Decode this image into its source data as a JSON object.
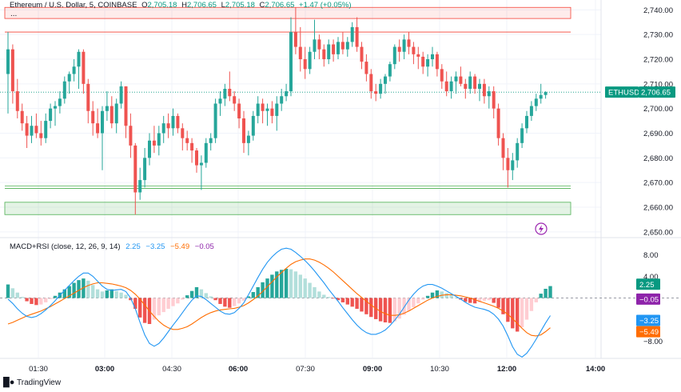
{
  "header": {
    "symbol_label": "Ethereum / U.S. Dollar, 5, COINBASE",
    "o_key": "O",
    "o_val": "2,705.18",
    "h_key": "H",
    "h_val": "2,706.65",
    "l_key": "L",
    "l_val": "2,705.18",
    "c_key": "C",
    "c_val": "2,706.65",
    "change": "+1.47 (+0.05%)",
    "more": "..."
  },
  "indicator": {
    "label": "MACD+RSI (close, 12, 26, 9, 14)",
    "v1": "2.25",
    "v2": "−3.25",
    "v3": "−5.49",
    "v4": "−0.05"
  },
  "brand": "TradingView",
  "colors": {
    "up": "#26a69a",
    "down": "#ef5350",
    "up_light": "#b2dfdb",
    "down_light": "#ffcdd2",
    "macd": "#2196f3",
    "signal": "#ff6d00",
    "tag_green": "#089981",
    "tag_purple": "#8e24aa",
    "tag_blue": "#2196f3",
    "tag_orange": "#ff6d00",
    "zone_red": "#f44336",
    "zone_green": "#4caf50"
  },
  "chart_data": [
    {
      "type": "candlestick",
      "symbol": "ETHUSD",
      "last_price": "2,706.65",
      "price_axis_ticks": [
        "2,740.00",
        "2,730.00",
        "2,720.00",
        "2,710.00",
        "2,700.00",
        "2,690.00",
        "2,680.00",
        "2,670.00",
        "2,660.00",
        "2,650.00"
      ],
      "ylim": [
        2648,
        2744
      ],
      "time_ticks": [
        {
          "label": "01:30",
          "bold": false
        },
        {
          "label": "03:00",
          "bold": true
        },
        {
          "label": "04:30",
          "bold": false
        },
        {
          "label": "06:00",
          "bold": true
        },
        {
          "label": "07:30",
          "bold": false
        },
        {
          "label": "09:00",
          "bold": true
        },
        {
          "label": "10:30",
          "bold": false
        },
        {
          "label": "12:00",
          "bold": true
        },
        {
          "label": "14:00",
          "bold": true
        }
      ],
      "zones": [
        {
          "kind": "resistance",
          "from": 2736.5,
          "to": 2741.0
        },
        {
          "kind": "resistance_line",
          "at": 2731.0
        },
        {
          "kind": "support_line",
          "at": 2668.6
        },
        {
          "kind": "support_line",
          "at": 2667.6
        },
        {
          "kind": "support",
          "from": 2657.0,
          "to": 2662.0
        }
      ],
      "candles": [
        [
          2714.0,
          2731.0,
          2698.0,
          2724.0
        ],
        [
          2724.0,
          2726.0,
          2702.0,
          2707.0
        ],
        [
          2707.0,
          2712.0,
          2696.0,
          2699.0
        ],
        [
          2699.0,
          2702.0,
          2691.0,
          2694.0
        ],
        [
          2694.0,
          2697.0,
          2684.0,
          2689.0
        ],
        [
          2689.0,
          2697.0,
          2686.0,
          2693.0
        ],
        [
          2693.0,
          2698.0,
          2688.0,
          2690.0
        ],
        [
          2690.0,
          2695.0,
          2685.0,
          2688.0
        ],
        [
          2688.0,
          2698.0,
          2686.0,
          2695.0
        ],
        [
          2695.0,
          2702.0,
          2692.0,
          2700.0
        ],
        [
          2700.0,
          2703.0,
          2693.0,
          2701.0
        ],
        [
          2701.0,
          2707.0,
          2698.0,
          2704.0
        ],
        [
          2704.0,
          2713.0,
          2702.0,
          2711.0
        ],
        [
          2711.0,
          2715.0,
          2706.0,
          2714.0
        ],
        [
          2714.0,
          2720.0,
          2711.0,
          2717.0
        ],
        [
          2717.0,
          2724.0,
          2708.0,
          2723.0
        ],
        [
          2723.0,
          2724.0,
          2706.0,
          2710.0
        ],
        [
          2710.0,
          2712.0,
          2694.0,
          2699.0
        ],
        [
          2699.0,
          2703.0,
          2689.0,
          2694.0
        ],
        [
          2694.0,
          2700.0,
          2688.0,
          2690.0
        ],
        [
          2690.0,
          2701.0,
          2675.0,
          2699.0
        ],
        [
          2699.0,
          2707.0,
          2695.0,
          2701.0
        ],
        [
          2701.0,
          2705.0,
          2692.0,
          2694.0
        ],
        [
          2694.0,
          2704.0,
          2690.0,
          2702.0
        ],
        [
          2702.0,
          2711.0,
          2700.0,
          2709.0
        ],
        [
          2709.0,
          2709.0,
          2688.0,
          2693.0
        ],
        [
          2693.0,
          2698.0,
          2680.0,
          2685.0
        ],
        [
          2685.0,
          2686.0,
          2657.0,
          2666.0
        ],
        [
          2666.0,
          2676.0,
          2663.0,
          2671.0
        ],
        [
          2671.0,
          2684.0,
          2668.0,
          2680.0
        ],
        [
          2680.0,
          2690.0,
          2677.0,
          2687.0
        ],
        [
          2687.0,
          2693.0,
          2682.0,
          2685.0
        ],
        [
          2685.0,
          2693.0,
          2681.0,
          2690.0
        ],
        [
          2690.0,
          2697.0,
          2686.0,
          2694.0
        ],
        [
          2694.0,
          2698.0,
          2688.0,
          2692.0
        ],
        [
          2692.0,
          2700.0,
          2689.0,
          2697.0
        ],
        [
          2697.0,
          2698.0,
          2690.0,
          2692.0
        ],
        [
          2692.0,
          2694.0,
          2683.0,
          2688.0
        ],
        [
          2688.0,
          2691.0,
          2683.0,
          2686.0
        ],
        [
          2686.0,
          2688.0,
          2678.0,
          2683.0
        ],
        [
          2683.0,
          2684.0,
          2674.0,
          2677.0
        ],
        [
          2677.0,
          2681.0,
          2667.0,
          2678.0
        ],
        [
          2678.0,
          2688.0,
          2676.0,
          2686.0
        ],
        [
          2686.0,
          2690.0,
          2683.0,
          2688.0
        ],
        [
          2688.0,
          2704.0,
          2686.0,
          2702.0
        ],
        [
          2702.0,
          2707.0,
          2697.0,
          2704.0
        ],
        [
          2704.0,
          2710.0,
          2701.0,
          2708.0
        ],
        [
          2708.0,
          2715.0,
          2703.0,
          2705.0
        ],
        [
          2705.0,
          2707.0,
          2699.0,
          2702.0
        ],
        [
          2702.0,
          2704.0,
          2692.0,
          2696.0
        ],
        [
          2696.0,
          2699.0,
          2682.0,
          2686.0
        ],
        [
          2686.0,
          2691.0,
          2681.0,
          2689.0
        ],
        [
          2689.0,
          2699.0,
          2687.0,
          2697.0
        ],
        [
          2697.0,
          2705.0,
          2694.0,
          2702.0
        ],
        [
          2702.0,
          2704.0,
          2694.0,
          2699.0
        ],
        [
          2699.0,
          2702.0,
          2693.0,
          2700.0
        ],
        [
          2700.0,
          2703.0,
          2694.0,
          2697.0
        ],
        [
          2697.0,
          2705.0,
          2691.0,
          2702.0
        ],
        [
          2702.0,
          2708.0,
          2699.0,
          2705.0
        ],
        [
          2705.0,
          2710.0,
          2703.0,
          2707.0
        ],
        [
          2707.0,
          2737.0,
          2705.0,
          2731.0
        ],
        [
          2731.0,
          2741.0,
          2722.0,
          2725.0
        ],
        [
          2725.0,
          2733.0,
          2715.0,
          2720.0
        ],
        [
          2720.0,
          2725.0,
          2712.0,
          2716.0
        ],
        [
          2716.0,
          2725.0,
          2714.0,
          2723.0
        ],
        [
          2723.0,
          2736.0,
          2720.0,
          2728.0
        ],
        [
          2728.0,
          2730.0,
          2720.0,
          2724.0
        ],
        [
          2724.0,
          2726.0,
          2717.0,
          2720.0
        ],
        [
          2720.0,
          2728.0,
          2718.0,
          2726.0
        ],
        [
          2726.0,
          2728.0,
          2719.0,
          2722.0
        ],
        [
          2722.0,
          2729.0,
          2720.0,
          2727.0
        ],
        [
          2727.0,
          2731.0,
          2722.0,
          2724.0
        ],
        [
          2724.0,
          2729.0,
          2721.0,
          2727.0
        ],
        [
          2727.0,
          2735.0,
          2725.0,
          2733.0
        ],
        [
          2733.0,
          2737.0,
          2723.0,
          2725.0
        ],
        [
          2725.0,
          2727.0,
          2716.0,
          2719.0
        ],
        [
          2719.0,
          2722.0,
          2711.0,
          2714.0
        ],
        [
          2714.0,
          2716.0,
          2704.0,
          2707.0
        ],
        [
          2707.0,
          2710.0,
          2703.0,
          2706.0
        ],
        [
          2706.0,
          2712.0,
          2704.0,
          2710.0
        ],
        [
          2710.0,
          2714.0,
          2706.0,
          2713.0
        ],
        [
          2713.0,
          2719.0,
          2711.0,
          2718.0
        ],
        [
          2718.0,
          2726.0,
          2716.0,
          2725.0
        ],
        [
          2725.0,
          2728.0,
          2719.0,
          2723.0
        ],
        [
          2723.0,
          2730.0,
          2720.0,
          2728.0
        ],
        [
          2728.0,
          2731.0,
          2722.0,
          2725.0
        ],
        [
          2725.0,
          2727.0,
          2718.0,
          2722.0
        ],
        [
          2722.0,
          2725.0,
          2716.0,
          2721.0
        ],
        [
          2721.0,
          2723.0,
          2714.0,
          2717.0
        ],
        [
          2717.0,
          2722.0,
          2713.0,
          2720.0
        ],
        [
          2720.0,
          2725.0,
          2717.0,
          2722.0
        ],
        [
          2722.0,
          2723.0,
          2713.0,
          2716.0
        ],
        [
          2716.0,
          2718.0,
          2708.0,
          2711.0
        ],
        [
          2711.0,
          2715.0,
          2705.0,
          2707.0
        ],
        [
          2707.0,
          2713.0,
          2704.0,
          2711.0
        ],
        [
          2711.0,
          2715.0,
          2706.0,
          2713.0
        ],
        [
          2713.0,
          2717.0,
          2709.0,
          2710.0
        ],
        [
          2710.0,
          2712.0,
          2704.0,
          2708.0
        ],
        [
          2708.0,
          2715.0,
          2706.0,
          2713.0
        ],
        [
          2713.0,
          2714.0,
          2706.0,
          2708.0
        ],
        [
          2708.0,
          2712.0,
          2703.0,
          2710.0
        ],
        [
          2710.0,
          2712.0,
          2702.0,
          2705.0
        ],
        [
          2705.0,
          2709.0,
          2700.0,
          2707.0
        ],
        [
          2707.0,
          2709.0,
          2696.0,
          2700.0
        ],
        [
          2700.0,
          2702.0,
          2685.0,
          2688.0
        ],
        [
          2688.0,
          2690.0,
          2675.0,
          2680.0
        ],
        [
          2680.0,
          2684.0,
          2668.0,
          2675.0
        ],
        [
          2675.0,
          2682.0,
          2671.0,
          2679.0
        ],
        [
          2679.0,
          2688.0,
          2676.0,
          2686.0
        ],
        [
          2686.0,
          2694.0,
          2684.0,
          2692.0
        ],
        [
          2692.0,
          2699.0,
          2690.0,
          2697.0
        ],
        [
          2697.0,
          2703.0,
          2695.0,
          2701.0
        ],
        [
          2701.0,
          2706.0,
          2699.0,
          2704.0
        ],
        [
          2704.0,
          2710.0,
          2702.0,
          2705.5
        ],
        [
          2705.5,
          2707.0,
          2704.0,
          2706.65
        ]
      ]
    },
    {
      "type": "macd",
      "label": "MACD+RSI (close, 12, 26, 9, 14)",
      "axis_ticks": [
        "8.00",
        "4.00",
        "−8.00"
      ],
      "ylim": [
        -11,
        11
      ],
      "tags": {
        "macd": "2.25",
        "hist": "−0.05",
        "rsi": "−3.25",
        "signal": "−5.49"
      },
      "histogram": [
        2.5,
        1.8,
        1.0,
        0.2,
        -0.6,
        -1.1,
        -1.3,
        -1.2,
        -0.8,
        -0.2,
        0.4,
        1.0,
        1.6,
        2.2,
        2.8,
        3.3,
        3.6,
        3.2,
        2.4,
        1.6,
        1.2,
        1.4,
        1.6,
        1.3,
        1.0,
        0.6,
        -0.4,
        -2.0,
        -3.6,
        -4.6,
        -4.8,
        -4.0,
        -3.2,
        -2.6,
        -2.0,
        -1.5,
        -1.0,
        -0.3,
        0.5,
        1.3,
        2.0,
        1.6,
        0.9,
        0.3,
        -0.4,
        -1.1,
        -1.6,
        -1.8,
        -1.5,
        -1.0,
        -0.5,
        0.3,
        1.1,
        2.0,
        2.9,
        3.6,
        4.3,
        4.9,
        5.2,
        5.4,
        5.3,
        4.9,
        4.3,
        3.6,
        2.8,
        2.0,
        1.2,
        0.6,
        0.2,
        -0.1,
        -0.4,
        -0.8,
        -1.2,
        -1.6,
        -2.0,
        -2.5,
        -3.0,
        -3.5,
        -3.9,
        -4.3,
        -4.5,
        -4.6,
        -4.3,
        -3.8,
        -3.1,
        -2.4,
        -1.7,
        -1.0,
        -0.3,
        0.4,
        1.0,
        1.4,
        1.2,
        0.9,
        0.5,
        0.1,
        -0.3,
        -0.7,
        -0.9,
        -1.0,
        -0.8,
        -0.5,
        -0.4,
        -0.9,
        -1.8,
        -3.0,
        -4.4,
        -5.6,
        -6.2,
        -5.4,
        -4.0,
        -2.4,
        -0.8,
        0.8,
        1.7,
        2.2
      ],
      "macd_line": [
        -0.2,
        -1.0,
        -2.0,
        -2.8,
        -3.4,
        -3.6,
        -3.4,
        -2.9,
        -2.2,
        -1.4,
        -0.5,
        0.5,
        1.4,
        2.3,
        3.2,
        4.0,
        4.6,
        4.6,
        4.0,
        3.1,
        2.2,
        1.6,
        1.4,
        1.5,
        1.6,
        1.2,
        0.0,
        -2.0,
        -4.5,
        -6.8,
        -8.4,
        -8.9,
        -8.4,
        -7.4,
        -6.2,
        -5.0,
        -3.9,
        -2.7,
        -1.5,
        -0.4,
        0.4,
        0.3,
        -0.3,
        -1.0,
        -1.7,
        -2.4,
        -2.9,
        -3.0,
        -2.7,
        -1.9,
        -0.9,
        0.6,
        2.2,
        3.8,
        5.3,
        6.6,
        7.6,
        8.4,
        9.0,
        9.2,
        9.0,
        8.4,
        7.7,
        6.9,
        6.0,
        5.0,
        3.9,
        2.8,
        1.6,
        0.5,
        -0.6,
        -1.8,
        -2.9,
        -4.0,
        -5.0,
        -5.8,
        -6.4,
        -6.7,
        -6.7,
        -6.4,
        -5.9,
        -5.1,
        -4.1,
        -3.0,
        -1.7,
        -0.4,
        0.7,
        1.6,
        2.2,
        2.5,
        2.5,
        2.2,
        1.8,
        1.3,
        0.8,
        0.3,
        -0.2,
        -0.8,
        -1.3,
        -1.7,
        -1.9,
        -2.1,
        -2.4,
        -3.0,
        -3.9,
        -5.2,
        -7.0,
        -9.0,
        -10.4,
        -10.9,
        -10.2,
        -9.0,
        -7.6,
        -6.1,
        -4.6,
        -3.25
      ],
      "signal_line": [
        -4.8,
        -4.5,
        -4.1,
        -3.7,
        -3.3,
        -3.0,
        -2.7,
        -2.4,
        -2.0,
        -1.6,
        -1.1,
        -0.6,
        -0.1,
        0.4,
        0.9,
        1.4,
        1.9,
        2.3,
        2.6,
        2.8,
        2.8,
        2.7,
        2.6,
        2.4,
        2.2,
        1.9,
        1.4,
        0.7,
        -0.2,
        -1.3,
        -2.4,
        -3.4,
        -4.3,
        -5.0,
        -5.5,
        -5.8,
        -5.8,
        -5.6,
        -5.3,
        -4.8,
        -4.2,
        -3.6,
        -3.1,
        -2.7,
        -2.4,
        -2.2,
        -2.1,
        -2.0,
        -1.9,
        -1.7,
        -1.4,
        -0.9,
        -0.3,
        0.4,
        1.2,
        2.1,
        3.0,
        3.9,
        4.7,
        5.5,
        6.2,
        6.7,
        7.0,
        7.2,
        7.2,
        7.0,
        6.6,
        6.1,
        5.5,
        4.8,
        4.0,
        3.2,
        2.4,
        1.6,
        0.8,
        0.1,
        -0.6,
        -1.3,
        -1.9,
        -2.5,
        -2.9,
        -3.2,
        -3.2,
        -3.1,
        -2.8,
        -2.4,
        -1.9,
        -1.4,
        -0.9,
        -0.4,
        0.0,
        0.3,
        0.5,
        0.6,
        0.6,
        0.5,
        0.4,
        0.2,
        0.0,
        -0.3,
        -0.6,
        -0.9,
        -1.2,
        -1.5,
        -1.9,
        -2.4,
        -3.0,
        -3.8,
        -4.7,
        -5.6,
        -6.4,
        -6.9,
        -7.0,
        -6.8,
        -6.2,
        -5.49
      ]
    }
  ]
}
